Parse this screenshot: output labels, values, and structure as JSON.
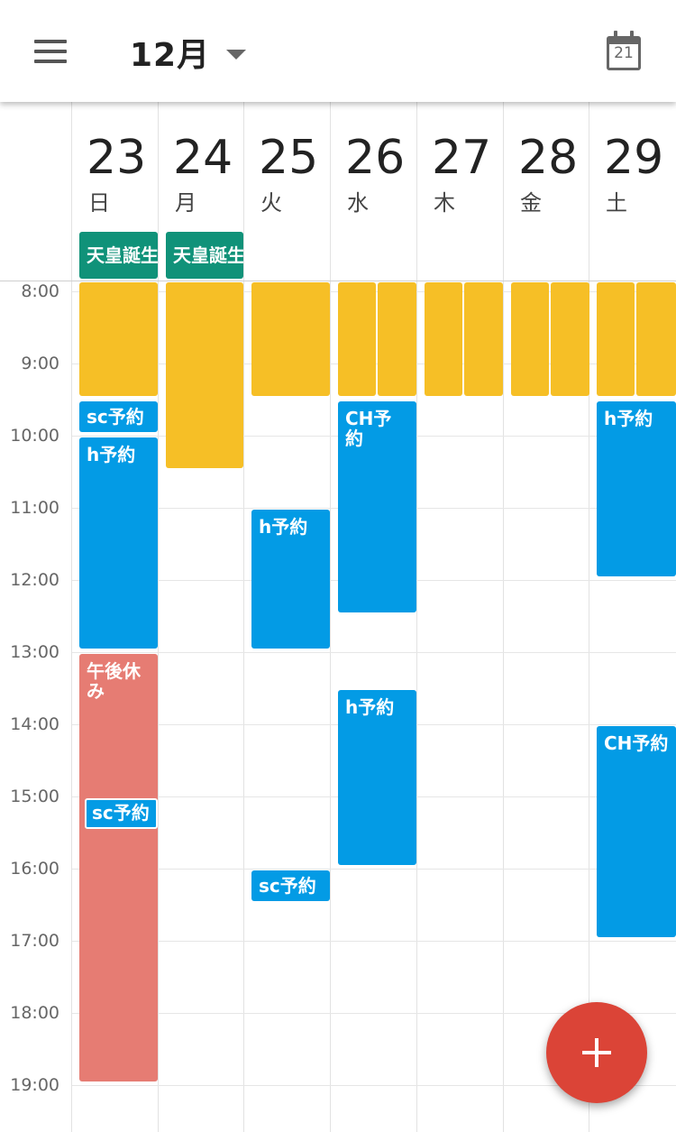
{
  "header": {
    "month_label": "12月",
    "today_number": "21",
    "menu_icon": "hamburger-menu-icon",
    "today_icon": "calendar-today-icon"
  },
  "days": [
    {
      "num": "23",
      "weekday": "日"
    },
    {
      "num": "24",
      "weekday": "月"
    },
    {
      "num": "25",
      "weekday": "火"
    },
    {
      "num": "26",
      "weekday": "水"
    },
    {
      "num": "27",
      "weekday": "木"
    },
    {
      "num": "28",
      "weekday": "金"
    },
    {
      "num": "29",
      "weekday": "土"
    }
  ],
  "all_day_events": {
    "sun": "天皇誕生日",
    "mon": "天皇誕生日 振替休日"
  },
  "times": [
    "8:00",
    "9:00",
    "10:00",
    "11:00",
    "12:00",
    "13:00",
    "14:00",
    "15:00",
    "16:00",
    "17:00",
    "18:00",
    "19:00"
  ],
  "events": {
    "sc": "sc予約",
    "h": "h予約",
    "ch": "CH予約",
    "afternoon_off": "午後休み"
  },
  "colors": {
    "yellow": "#f6bf26",
    "blue": "#039be5",
    "salmon": "#e67c73",
    "teal": "#109279",
    "fab": "#db4437"
  },
  "fab": {
    "symbol": "+"
  }
}
